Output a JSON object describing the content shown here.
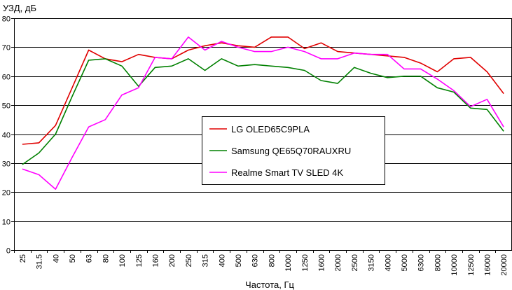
{
  "chart_data": {
    "type": "line",
    "title": "",
    "ylabel": "УЗД, дБ",
    "xlabel": "Частота, Гц",
    "ylim": [
      0,
      80
    ],
    "yticks": [
      0,
      10,
      20,
      30,
      40,
      50,
      60,
      70,
      80
    ],
    "grid": {
      "horizontal": true,
      "vertical": false
    },
    "legend_position": "center",
    "categories": [
      "25",
      "31.5",
      "40",
      "50",
      "63",
      "80",
      "100",
      "125",
      "160",
      "200",
      "250",
      "315",
      "400",
      "500",
      "630",
      "800",
      "1000",
      "1250",
      "1600",
      "2000",
      "2500",
      "3150",
      "4000",
      "5000",
      "6300",
      "8000",
      "10000",
      "12500",
      "16000",
      "20000"
    ],
    "series": [
      {
        "name": "LG OLED65C9PLA",
        "color": "#e00000",
        "values": [
          36.5,
          37,
          43,
          56,
          69,
          66,
          65,
          67.5,
          66.5,
          66,
          69,
          70.5,
          71.5,
          70.5,
          70,
          73.5,
          73.5,
          69.5,
          71.5,
          68.5,
          68,
          67.5,
          67,
          66.5,
          64.5,
          61.5,
          66,
          66.5,
          61.5,
          54
        ]
      },
      {
        "name": "Samsung QE65Q70RAUXRU",
        "color": "#008000",
        "values": [
          29.5,
          33.5,
          40,
          53,
          65.5,
          66,
          63.5,
          56.5,
          63,
          63.5,
          66,
          62,
          66,
          63.5,
          64,
          63.5,
          63,
          62,
          58.5,
          57.5,
          63,
          61,
          59.5,
          60,
          60,
          56,
          54.5,
          49,
          48.5,
          41
        ]
      },
      {
        "name": "Realme Smart TV SLED 4K",
        "color": "#ff00ff",
        "values": [
          28,
          26,
          21,
          32,
          42.5,
          45,
          53.5,
          56,
          66.5,
          66,
          73.5,
          69,
          72,
          70,
          68.5,
          68.5,
          70,
          68.5,
          66,
          66,
          68,
          67.5,
          67.5,
          62.5,
          62.5,
          59,
          55,
          49.5,
          52,
          42.5
        ]
      }
    ]
  }
}
